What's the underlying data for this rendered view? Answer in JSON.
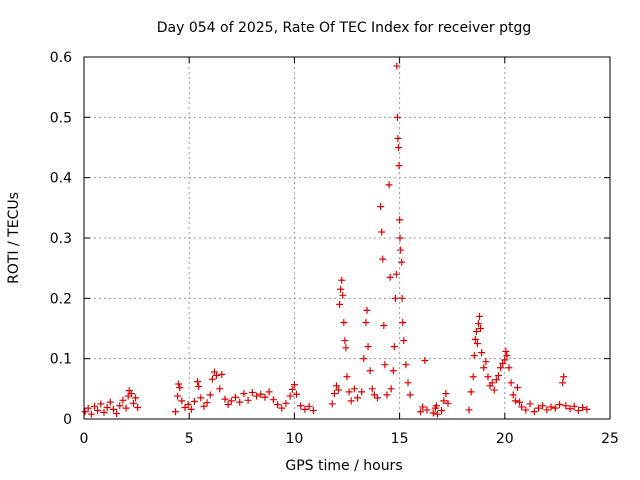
{
  "chart_data": {
    "type": "scatter",
    "title": "Day 054 of 2025, Rate Of TEC Index for receiver ptgg",
    "xlabel": "GPS time / hours",
    "ylabel": "ROTI / TECUs",
    "xlim": [
      0,
      25
    ],
    "ylim": [
      0,
      0.6
    ],
    "xticks": [
      0,
      5,
      10,
      15,
      20,
      25
    ],
    "xtick_labels": [
      "0",
      "5",
      "10",
      "15",
      "20",
      "25"
    ],
    "yticks": [
      0,
      0.1,
      0.2,
      0.3,
      0.4,
      0.5,
      0.6
    ],
    "ytick_labels": [
      "0",
      "0.1",
      "0.2",
      "0.3",
      "0.4",
      "0.5",
      "0.6"
    ],
    "grid": true,
    "marker": "+",
    "marker_color": "#e00000",
    "series": [
      {
        "points": [
          [
            0.05,
            0.012
          ],
          [
            0.2,
            0.018
          ],
          [
            0.35,
            0.008
          ],
          [
            0.5,
            0.021
          ],
          [
            0.65,
            0.014
          ],
          [
            0.8,
            0.025
          ],
          [
            0.95,
            0.011
          ],
          [
            1.1,
            0.019
          ],
          [
            1.25,
            0.028
          ],
          [
            1.4,
            0.016
          ],
          [
            1.55,
            0.009
          ],
          [
            1.7,
            0.022
          ],
          [
            1.85,
            0.031
          ],
          [
            2.0,
            0.018
          ],
          [
            2.1,
            0.038
          ],
          [
            2.15,
            0.047
          ],
          [
            2.25,
            0.042
          ],
          [
            2.35,
            0.026
          ],
          [
            2.45,
            0.035
          ],
          [
            2.55,
            0.019
          ],
          [
            4.35,
            0.012
          ],
          [
            4.45,
            0.038
          ],
          [
            4.5,
            0.058
          ],
          [
            4.55,
            0.052
          ],
          [
            4.65,
            0.03
          ],
          [
            4.8,
            0.019
          ],
          [
            4.95,
            0.024
          ],
          [
            5.1,
            0.016
          ],
          [
            5.25,
            0.029
          ],
          [
            5.4,
            0.062
          ],
          [
            5.45,
            0.054
          ],
          [
            5.55,
            0.035
          ],
          [
            5.7,
            0.021
          ],
          [
            5.85,
            0.027
          ],
          [
            6.0,
            0.04
          ],
          [
            6.1,
            0.066
          ],
          [
            6.2,
            0.078
          ],
          [
            6.3,
            0.072
          ],
          [
            6.45,
            0.05
          ],
          [
            6.55,
            0.074
          ],
          [
            6.7,
            0.033
          ],
          [
            6.85,
            0.024
          ],
          [
            7.0,
            0.03
          ],
          [
            7.2,
            0.036
          ],
          [
            7.4,
            0.028
          ],
          [
            7.6,
            0.042
          ],
          [
            7.8,
            0.031
          ],
          [
            8.0,
            0.044
          ],
          [
            8.2,
            0.038
          ],
          [
            8.4,
            0.041
          ],
          [
            8.6,
            0.036
          ],
          [
            8.8,
            0.045
          ],
          [
            9.0,
            0.032
          ],
          [
            9.2,
            0.024
          ],
          [
            9.4,
            0.018
          ],
          [
            9.6,
            0.026
          ],
          [
            9.8,
            0.038
          ],
          [
            9.9,
            0.049
          ],
          [
            10.0,
            0.057
          ],
          [
            10.1,
            0.041
          ],
          [
            10.3,
            0.022
          ],
          [
            10.5,
            0.016
          ],
          [
            10.7,
            0.021
          ],
          [
            10.9,
            0.014
          ],
          [
            11.8,
            0.025
          ],
          [
            11.9,
            0.042
          ],
          [
            12.0,
            0.055
          ],
          [
            12.1,
            0.048
          ],
          [
            12.15,
            0.19
          ],
          [
            12.2,
            0.215
          ],
          [
            12.25,
            0.23
          ],
          [
            12.3,
            0.205
          ],
          [
            12.35,
            0.16
          ],
          [
            12.4,
            0.13
          ],
          [
            12.45,
            0.118
          ],
          [
            12.5,
            0.07
          ],
          [
            12.6,
            0.045
          ],
          [
            12.7,
            0.03
          ],
          [
            12.85,
            0.05
          ],
          [
            13.0,
            0.035
          ],
          [
            13.2,
            0.045
          ],
          [
            13.3,
            0.1
          ],
          [
            13.4,
            0.16
          ],
          [
            13.45,
            0.18
          ],
          [
            13.5,
            0.12
          ],
          [
            13.6,
            0.08
          ],
          [
            13.7,
            0.05
          ],
          [
            13.8,
            0.04
          ],
          [
            13.95,
            0.035
          ],
          [
            14.1,
            0.352
          ],
          [
            14.15,
            0.31
          ],
          [
            14.2,
            0.265
          ],
          [
            14.25,
            0.155
          ],
          [
            14.3,
            0.09
          ],
          [
            14.4,
            0.04
          ],
          [
            14.5,
            0.388
          ],
          [
            14.55,
            0.235
          ],
          [
            14.6,
            0.05
          ],
          [
            14.7,
            0.08
          ],
          [
            14.75,
            0.12
          ],
          [
            14.8,
            0.2
          ],
          [
            14.85,
            0.24
          ],
          [
            14.87,
            0.585
          ],
          [
            14.9,
            0.5
          ],
          [
            14.92,
            0.465
          ],
          [
            14.95,
            0.45
          ],
          [
            14.97,
            0.42
          ],
          [
            15.0,
            0.33
          ],
          [
            15.02,
            0.3
          ],
          [
            15.05,
            0.28
          ],
          [
            15.1,
            0.26
          ],
          [
            15.12,
            0.2
          ],
          [
            15.15,
            0.16
          ],
          [
            15.2,
            0.13
          ],
          [
            15.3,
            0.09
          ],
          [
            15.4,
            0.06
          ],
          [
            15.5,
            0.04
          ],
          [
            16.0,
            0.012
          ],
          [
            16.1,
            0.02
          ],
          [
            16.2,
            0.097
          ],
          [
            16.3,
            0.015
          ],
          [
            16.6,
            0.01
          ],
          [
            16.7,
            0.018
          ],
          [
            16.75,
            0.022
          ],
          [
            16.8,
            0.008
          ],
          [
            17.0,
            0.014
          ],
          [
            17.1,
            0.03
          ],
          [
            17.2,
            0.042
          ],
          [
            17.3,
            0.026
          ],
          [
            18.3,
            0.015
          ],
          [
            18.4,
            0.045
          ],
          [
            18.5,
            0.07
          ],
          [
            18.55,
            0.105
          ],
          [
            18.6,
            0.132
          ],
          [
            18.65,
            0.145
          ],
          [
            18.7,
            0.125
          ],
          [
            18.75,
            0.158
          ],
          [
            18.8,
            0.17
          ],
          [
            18.85,
            0.15
          ],
          [
            18.9,
            0.11
          ],
          [
            19.0,
            0.085
          ],
          [
            19.1,
            0.095
          ],
          [
            19.2,
            0.07
          ],
          [
            19.3,
            0.055
          ],
          [
            19.4,
            0.06
          ],
          [
            19.5,
            0.048
          ],
          [
            19.6,
            0.065
          ],
          [
            19.7,
            0.072
          ],
          [
            19.8,
            0.085
          ],
          [
            19.9,
            0.092
          ],
          [
            20.0,
            0.098
          ],
          [
            20.05,
            0.112
          ],
          [
            20.1,
            0.105
          ],
          [
            20.2,
            0.085
          ],
          [
            20.3,
            0.06
          ],
          [
            20.4,
            0.04
          ],
          [
            20.5,
            0.03
          ],
          [
            20.6,
            0.052
          ],
          [
            20.7,
            0.028
          ],
          [
            20.8,
            0.02
          ],
          [
            21.0,
            0.015
          ],
          [
            21.2,
            0.025
          ],
          [
            21.4,
            0.012
          ],
          [
            21.6,
            0.018
          ],
          [
            21.8,
            0.022
          ],
          [
            22.0,
            0.015
          ],
          [
            22.2,
            0.02
          ],
          [
            22.4,
            0.018
          ],
          [
            22.6,
            0.024
          ],
          [
            22.75,
            0.06
          ],
          [
            22.8,
            0.07
          ],
          [
            22.9,
            0.022
          ],
          [
            23.1,
            0.017
          ],
          [
            23.3,
            0.021
          ],
          [
            23.5,
            0.014
          ],
          [
            23.7,
            0.019
          ],
          [
            23.9,
            0.016
          ]
        ]
      }
    ]
  }
}
